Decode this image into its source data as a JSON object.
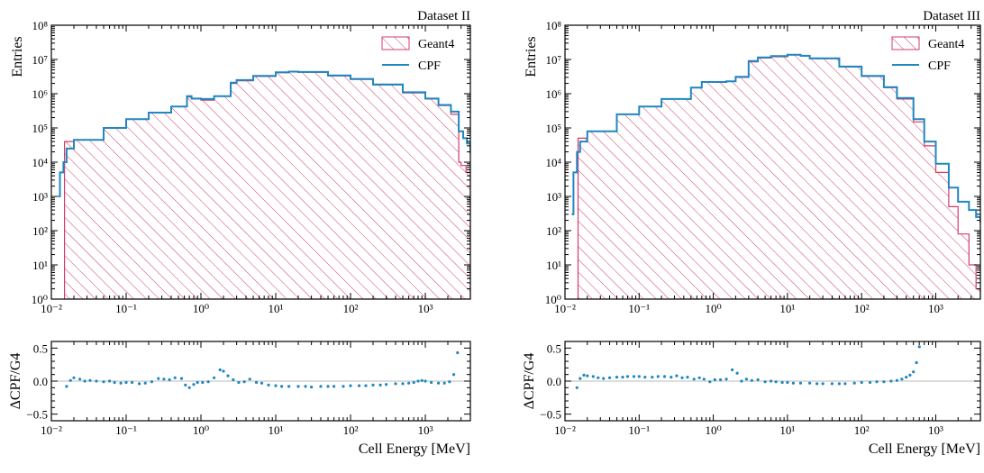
{
  "colors": {
    "geant4": "#d23c6a",
    "cpf": "#1f87c1",
    "ratio_points": "#1f87c1",
    "zero_line": "#bbbbbb",
    "axes": "#000000"
  },
  "chart_data": [
    {
      "type": "histogram",
      "panel": "left",
      "dataset_label": "Dataset II",
      "ylabel": "Entries",
      "ratio_ylabel": "ΔCPF/G4",
      "xlabel": "Cell Energy [MeV]",
      "x_scale": "log",
      "y_scale": "log",
      "xlim": [
        0.01,
        4000
      ],
      "ylim": [
        1,
        100000000
      ],
      "ratio_ylim": [
        -0.6,
        0.6
      ],
      "x_ticks": [
        0.01,
        0.1,
        1,
        10,
        100,
        1000
      ],
      "x_tick_labels": [
        "10⁻²",
        "10⁻¹",
        "10⁰",
        "10¹",
        "10²",
        "10³"
      ],
      "y_ticks": [
        1,
        10,
        100,
        1000,
        10000,
        100000,
        1000000,
        10000000,
        100000000
      ],
      "y_tick_labels": [
        "10⁰",
        "10¹",
        "10²",
        "10³",
        "10⁴",
        "10⁵",
        "10⁶",
        "10⁷",
        "10⁸"
      ],
      "ratio_ticks": [
        0.5,
        0,
        -0.5
      ],
      "ratio_tick_labels": [
        "0.5",
        "0.0",
        "−0.5"
      ],
      "legend": [
        "Geant4",
        "CPF"
      ],
      "legend_position": "top-right",
      "series": [
        {
          "name": "Geant4",
          "style": "hatched-step",
          "x": [
            0.0145,
            0.015,
            0.02,
            0.05,
            0.1,
            0.2,
            0.4,
            0.65,
            0.75,
            1.0,
            1.5,
            2.5,
            3.0,
            5,
            10,
            15,
            20,
            50,
            100,
            200,
            500,
            1000,
            1500,
            2200,
            2800,
            3000,
            3500,
            4000
          ],
          "y": [
            1,
            40000,
            45000,
            100000,
            180000,
            280000,
            420000,
            800000,
            700000,
            650000,
            850000,
            2000000,
            2400000,
            3200000,
            4100000,
            4300000,
            4200000,
            3300000,
            2600000,
            1800000,
            1050000,
            700000,
            450000,
            250000,
            10000,
            8000,
            5000,
            3000
          ]
        },
        {
          "name": "CPF",
          "style": "step",
          "x": [
            0.0123,
            0.013,
            0.0145,
            0.016,
            0.02,
            0.05,
            0.1,
            0.2,
            0.4,
            0.65,
            0.75,
            1.0,
            1.5,
            2.5,
            3.0,
            5,
            10,
            15,
            20,
            50,
            100,
            200,
            500,
            1000,
            1500,
            2200,
            2800,
            3200,
            3600,
            4000
          ],
          "y": [
            1000,
            5000,
            10000,
            25000,
            45000,
            100000,
            180000,
            280000,
            420000,
            850000,
            720000,
            700000,
            850000,
            2100000,
            2500000,
            3300000,
            4200000,
            4400000,
            4300000,
            3400000,
            2700000,
            1850000,
            1100000,
            720000,
            470000,
            300000,
            80000,
            50000,
            35000,
            18000
          ]
        }
      ],
      "ratio": {
        "name": "ΔCPF/G4",
        "x": [
          0.016,
          0.018,
          0.02,
          0.024,
          0.028,
          0.033,
          0.04,
          0.05,
          0.06,
          0.07,
          0.085,
          0.1,
          0.12,
          0.15,
          0.18,
          0.22,
          0.27,
          0.32,
          0.38,
          0.45,
          0.55,
          0.62,
          0.7,
          0.8,
          0.9,
          1.05,
          1.25,
          1.5,
          1.8,
          2.0,
          2.3,
          2.7,
          3.2,
          3.8,
          4.5,
          5.5,
          6.5,
          8,
          10,
          12,
          15,
          20,
          25,
          30,
          40,
          50,
          60,
          80,
          100,
          130,
          160,
          200,
          250,
          300,
          400,
          500,
          600,
          700,
          800,
          900,
          1000,
          1200,
          1500,
          1800,
          2100,
          2400,
          2700
        ],
        "y": [
          -0.08,
          0.01,
          0.05,
          0.03,
          0.0,
          0.01,
          0.0,
          -0.01,
          0.0,
          -0.02,
          -0.03,
          -0.02,
          -0.02,
          -0.04,
          -0.03,
          -0.01,
          0.04,
          0.03,
          0.02,
          0.05,
          0.04,
          -0.06,
          -0.1,
          -0.05,
          -0.02,
          -0.02,
          -0.01,
          0.05,
          0.17,
          0.15,
          0.08,
          0.02,
          -0.02,
          -0.01,
          0.03,
          -0.02,
          -0.03,
          -0.06,
          -0.07,
          -0.08,
          -0.08,
          -0.08,
          -0.08,
          -0.09,
          -0.08,
          -0.08,
          -0.08,
          -0.08,
          -0.07,
          -0.07,
          -0.07,
          -0.06,
          -0.06,
          -0.05,
          -0.04,
          -0.04,
          -0.03,
          -0.02,
          0.0,
          0.01,
          0.0,
          -0.02,
          -0.03,
          -0.03,
          -0.01,
          0.1,
          0.43
        ]
      }
    },
    {
      "type": "histogram",
      "panel": "right",
      "dataset_label": "Dataset III",
      "ylabel": "Entries",
      "ratio_ylabel": "ΔCPF/G4",
      "xlabel": "Cell Energy [MeV]",
      "x_scale": "log",
      "y_scale": "log",
      "xlim": [
        0.01,
        4000
      ],
      "ylim": [
        1,
        100000000
      ],
      "ratio_ylim": [
        -0.6,
        0.6
      ],
      "x_ticks": [
        0.01,
        0.1,
        1,
        10,
        100,
        1000
      ],
      "x_tick_labels": [
        "10⁻²",
        "10⁻¹",
        "10⁰",
        "10¹",
        "10²",
        "10³"
      ],
      "y_ticks": [
        1,
        10,
        100,
        1000,
        10000,
        100000,
        1000000,
        10000000,
        100000000
      ],
      "y_tick_labels": [
        "10⁰",
        "10¹",
        "10²",
        "10³",
        "10⁴",
        "10⁵",
        "10⁶",
        "10⁷",
        "10⁸"
      ],
      "ratio_ticks": [
        0.5,
        0,
        -0.5
      ],
      "ratio_tick_labels": [
        "0.5",
        "0.0",
        "−0.5"
      ],
      "legend": [
        "Geant4",
        "CPF"
      ],
      "legend_position": "top-right",
      "series": [
        {
          "name": "Geant4",
          "style": "hatched-step",
          "x": [
            0.0145,
            0.015,
            0.02,
            0.05,
            0.1,
            0.2,
            0.5,
            0.7,
            1.0,
            1.5,
            2.0,
            3.0,
            4.0,
            6,
            10,
            15,
            20,
            50,
            100,
            200,
            300,
            500,
            700,
            1000,
            1500,
            2000,
            2800,
            3500,
            4000
          ],
          "y": [
            1,
            50000,
            80000,
            250000,
            420000,
            700000,
            1500000,
            2200000,
            2200000,
            2300000,
            3000000,
            8500000,
            11000000,
            12000000,
            13500000,
            12500000,
            10500000,
            6000000,
            3200000,
            1500000,
            700000,
            150000,
            30000,
            5000,
            500,
            80,
            10,
            2,
            1
          ]
        },
        {
          "name": "CPF",
          "style": "step",
          "x": [
            0.0123,
            0.013,
            0.0145,
            0.016,
            0.02,
            0.05,
            0.1,
            0.2,
            0.5,
            0.7,
            1.0,
            1.5,
            2.0,
            3.0,
            4.0,
            6,
            10,
            15,
            20,
            50,
            100,
            200,
            300,
            500,
            700,
            1000,
            1500,
            2000,
            2800,
            3500,
            4000
          ],
          "y": [
            300,
            5000,
            20000,
            40000,
            80000,
            250000,
            420000,
            700000,
            1500000,
            2200000,
            2200000,
            2300000,
            3100000,
            9000000,
            11500000,
            12500000,
            13800000,
            12800000,
            10800000,
            6200000,
            3300000,
            1550000,
            750000,
            180000,
            40000,
            9000,
            1800,
            700,
            400,
            250,
            170
          ]
        }
      ],
      "ratio": {
        "name": "ΔCPF/G4",
        "x": [
          0.0145,
          0.016,
          0.018,
          0.02,
          0.024,
          0.028,
          0.033,
          0.04,
          0.05,
          0.06,
          0.07,
          0.085,
          0.1,
          0.12,
          0.15,
          0.18,
          0.22,
          0.27,
          0.32,
          0.38,
          0.45,
          0.55,
          0.65,
          0.75,
          0.9,
          1.05,
          1.25,
          1.5,
          1.8,
          2.1,
          2.4,
          2.8,
          3.3,
          4.0,
          5,
          6,
          7,
          8.5,
          10,
          12,
          15,
          20,
          25,
          30,
          40,
          50,
          60,
          80,
          100,
          130,
          160,
          200,
          250,
          300,
          350,
          400,
          450,
          500,
          550,
          600
        ],
        "y": [
          -0.1,
          0.04,
          0.09,
          0.08,
          0.07,
          0.05,
          0.04,
          0.05,
          0.06,
          0.06,
          0.07,
          0.07,
          0.07,
          0.06,
          0.06,
          0.07,
          0.07,
          0.06,
          0.08,
          0.05,
          0.06,
          0.03,
          0.05,
          0.03,
          -0.01,
          0.02,
          0.02,
          0.03,
          0.17,
          0.12,
          0.0,
          0.03,
          0.01,
          0.02,
          -0.01,
          0.0,
          -0.01,
          -0.02,
          -0.02,
          -0.03,
          -0.03,
          -0.03,
          -0.04,
          -0.04,
          -0.04,
          -0.04,
          -0.04,
          -0.03,
          -0.02,
          -0.02,
          -0.01,
          -0.01,
          0.0,
          0.01,
          0.03,
          0.06,
          0.09,
          0.14,
          0.28,
          0.52
        ]
      }
    }
  ]
}
